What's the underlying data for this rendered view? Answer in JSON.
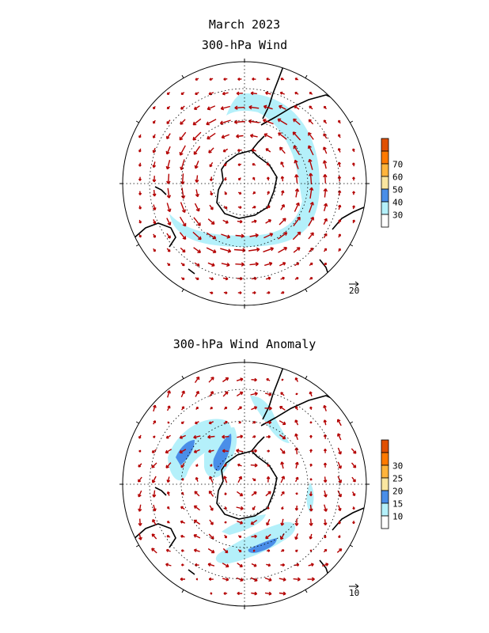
{
  "figure": {
    "title": "March 2023",
    "top_panel_title": "300-hPa Wind",
    "bottom_panel_title": "300-hPa Wind Anomaly"
  },
  "top_panel": {
    "projection": "south-polar-stereographic",
    "colorbar": {
      "labels": [
        "30",
        "40",
        "50",
        "60",
        "70"
      ],
      "colors": [
        "#ffffff",
        "#b4f0fa",
        "#4a8ee8",
        "#fae6a0",
        "#ffb43c",
        "#ff7a00",
        "#e05000"
      ]
    },
    "reference_vector_label": "20",
    "arrow_color": "#b40000",
    "jet_shading_color": "#b4f0fa"
  },
  "bottom_panel": {
    "projection": "south-polar-stereographic",
    "colorbar": {
      "labels": [
        "10",
        "15",
        "20",
        "25",
        "30"
      ],
      "colors": [
        "#ffffff",
        "#b4f0fa",
        "#4a8ee8",
        "#fae6a0",
        "#ffb43c",
        "#ff7a00",
        "#e05000"
      ]
    },
    "reference_vector_label": "10",
    "arrow_color": "#b40000",
    "anomaly_shading_color": "#b4f0fa",
    "anomaly_strong_color": "#4a8ee8"
  }
}
